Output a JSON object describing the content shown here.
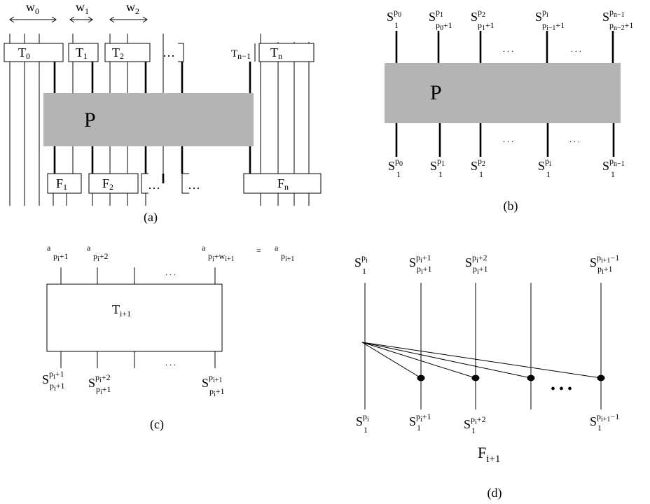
{
  "panel_a": {
    "caption": "(a)",
    "center_label": "P",
    "width_labels": [
      {
        "base": "w",
        "sub": "0"
      },
      {
        "base": "w",
        "sub": "1"
      },
      {
        "base": "w",
        "sub": "2"
      }
    ],
    "top_boxes": [
      {
        "base": "T",
        "sub": "0"
      },
      {
        "base": "T",
        "sub": "1"
      },
      {
        "base": "T",
        "sub": "2"
      },
      {
        "base": "T",
        "sub": "n−1"
      },
      {
        "base": "T",
        "sub": "n"
      }
    ],
    "bottom_boxes": [
      {
        "base": "F",
        "sub": "1"
      },
      {
        "base": "F",
        "sub": "2"
      },
      {
        "base": "F",
        "sub": "n"
      }
    ],
    "ellipsis": "…"
  },
  "panel_b": {
    "caption": "(b)",
    "center_label": "P",
    "ellipsis": ". . .",
    "top_labels": [
      {
        "base": "S",
        "sup": "p",
        "supsub": "0",
        "sub": "1",
        "subx": ""
      },
      {
        "base": "S",
        "sup": "p",
        "supsub": "1",
        "sub": "p",
        "subx": "0",
        "subtail": "+1"
      },
      {
        "base": "S",
        "sup": "p",
        "supsub": "2",
        "sub": "p",
        "subx": "1",
        "subtail": "+1"
      },
      {
        "base": "S",
        "sup": "p",
        "supsub": "i",
        "sub": "p",
        "subx": "i−1",
        "subtail": "+1"
      },
      {
        "base": "S",
        "sup": "p",
        "supsub": "n−1",
        "sub": "p",
        "subx": "n−2",
        "subtail": "+1"
      }
    ],
    "bottom_labels": [
      {
        "base": "S",
        "sup": "p",
        "supsub": "0",
        "sub": "1"
      },
      {
        "base": "S",
        "sup": "p",
        "supsub": "1",
        "sub": "1"
      },
      {
        "base": "S",
        "sup": "p",
        "supsub": "2",
        "sub": "1"
      },
      {
        "base": "S",
        "sup": "p",
        "supsub": "i",
        "sub": "1"
      },
      {
        "base": "S",
        "sup": "p",
        "supsub": "n−1",
        "sub": "1"
      }
    ]
  },
  "panel_c": {
    "caption": "(c)",
    "box_label": {
      "base": "T",
      "sub": "i+1"
    },
    "ellipsis": ". . .",
    "equals": "=",
    "top_labels": [
      {
        "base": "a",
        "sub": "p",
        "subsub": "i",
        "subtail": "+1"
      },
      {
        "base": "a",
        "sub": "p",
        "subsub": "i",
        "subtail": "+2"
      },
      {
        "base": "a",
        "sub": "p",
        "subsub": "i",
        "subtail": "+w",
        "subtail2": "i+1"
      },
      {
        "base": "a",
        "sub": "p",
        "subsub": "i+1",
        "subtail": ""
      }
    ],
    "bottom_labels": [
      {
        "base": "S",
        "sup": "p",
        "supsub": "i",
        "suptail": "+1",
        "sub": "p",
        "subsub": "i",
        "subtail": "+1"
      },
      {
        "base": "S",
        "sup": "p",
        "supsub": "i",
        "suptail": "+2",
        "sub": "p",
        "subsub": "i",
        "subtail": "+1"
      },
      {
        "base": "S",
        "sup": "p",
        "supsub": "i+1",
        "suptail": "",
        "sub": "p",
        "subsub": "i",
        "subtail": "+1"
      }
    ]
  },
  "panel_d": {
    "caption": "(d)",
    "label": {
      "base": "F",
      "sub": "i+1"
    },
    "dots": "• • •",
    "top_labels": [
      {
        "base": "S",
        "sup": "p",
        "supsub": "i",
        "suptail": "",
        "sub": "1"
      },
      {
        "base": "S",
        "sup": "p",
        "supsub": "i",
        "suptail": "+1",
        "sub": "p",
        "subsub": "i",
        "subtail": "+1"
      },
      {
        "base": "S",
        "sup": "p",
        "supsub": "i",
        "suptail": "+2",
        "sub": "p",
        "subsub": "i",
        "subtail": "+1"
      },
      {
        "base": "S",
        "sup": "p",
        "supsub": "i+1",
        "suptail": "−1",
        "sub": "p",
        "subsub": "i",
        "subtail": "+1"
      }
    ],
    "bottom_labels": [
      {
        "base": "S",
        "sup": "p",
        "supsub": "i",
        "suptail": "",
        "sub": "1"
      },
      {
        "base": "S",
        "sup": "p",
        "supsub": "i",
        "suptail": "+1",
        "sub": "1"
      },
      {
        "base": "S",
        "sup": "p",
        "supsub": "i",
        "suptail": "+2",
        "sub": "1"
      },
      {
        "base": "S",
        "sup": "p",
        "supsub": "i+1",
        "suptail": "−1",
        "sub": "1"
      }
    ]
  }
}
